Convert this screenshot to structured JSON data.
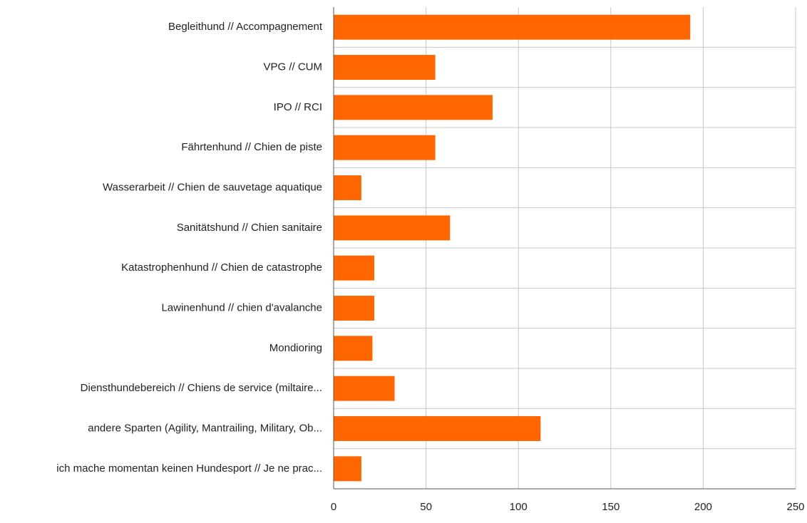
{
  "chart_data": {
    "type": "bar",
    "orientation": "horizontal",
    "title": "",
    "xlabel": "",
    "ylabel": "",
    "categories": [
      "Begleithund // Accompagnement",
      "VPG // CUM",
      "IPO // RCI",
      "Fährtenhund // Chien de piste",
      "Wasserarbeit // Chien de sauvetage aquatique",
      "Sanitätshund // Chien sanitaire",
      "Katastrophenhund // Chien de catastrophe",
      "Lawinenhund // chien d'avalanche",
      "Mondioring",
      "Diensthundebereich // Chiens de service (miltaire...",
      "andere Sparten (Agility, Mantrailing, Military, Ob...",
      "ich mache momentan keinen Hundesport // Je ne prac..."
    ],
    "values": [
      193,
      55,
      86,
      55,
      15,
      63,
      22,
      22,
      21,
      33,
      112,
      15
    ],
    "xlim": [
      0,
      250
    ],
    "xticks": [
      0,
      50,
      100,
      150,
      200,
      250
    ],
    "xtick_labels": [
      "0",
      "50",
      "100",
      "150",
      "200",
      "250"
    ],
    "grid": true,
    "bar_color": "#ff6600",
    "grid_color": "#c8c8c8",
    "axis_color": "#555555"
  }
}
